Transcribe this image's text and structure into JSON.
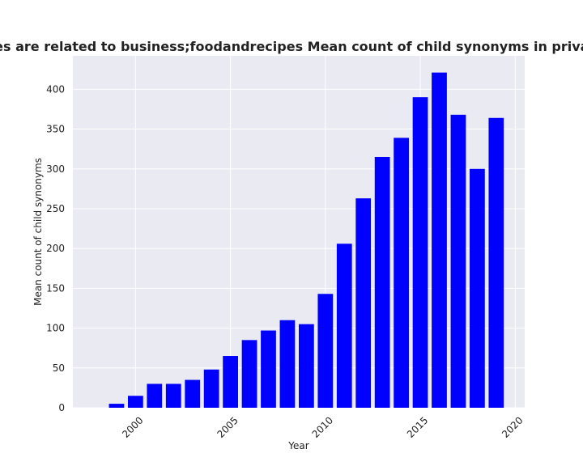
{
  "chart_data": {
    "type": "bar",
    "title": "Categories are related to business;foodandrecipes Mean count of child synonyms in privacy policies",
    "xlabel": "Year",
    "ylabel": "Mean count of child synonyms",
    "x": [
      1999,
      2000,
      2001,
      2002,
      2003,
      2004,
      2005,
      2006,
      2007,
      2008,
      2009,
      2010,
      2011,
      2012,
      2013,
      2014,
      2015,
      2016,
      2017,
      2018,
      2019
    ],
    "values": [
      5,
      15,
      30,
      30,
      35,
      48,
      65,
      85,
      97,
      110,
      105,
      143,
      206,
      263,
      315,
      339,
      390,
      421,
      368,
      300,
      364
    ],
    "xlim": [
      1996.7,
      2020.5
    ],
    "ylim": [
      0,
      442
    ],
    "xticks": [
      "2000",
      "2005",
      "2010",
      "2015",
      "2020"
    ],
    "yticks": [
      "0",
      "50",
      "100",
      "150",
      "200",
      "250",
      "300",
      "350",
      "400"
    ],
    "bar_color": "#0000ff",
    "background_color": "#eaeaf2",
    "grid_color": "#ffffff",
    "grid": true
  }
}
